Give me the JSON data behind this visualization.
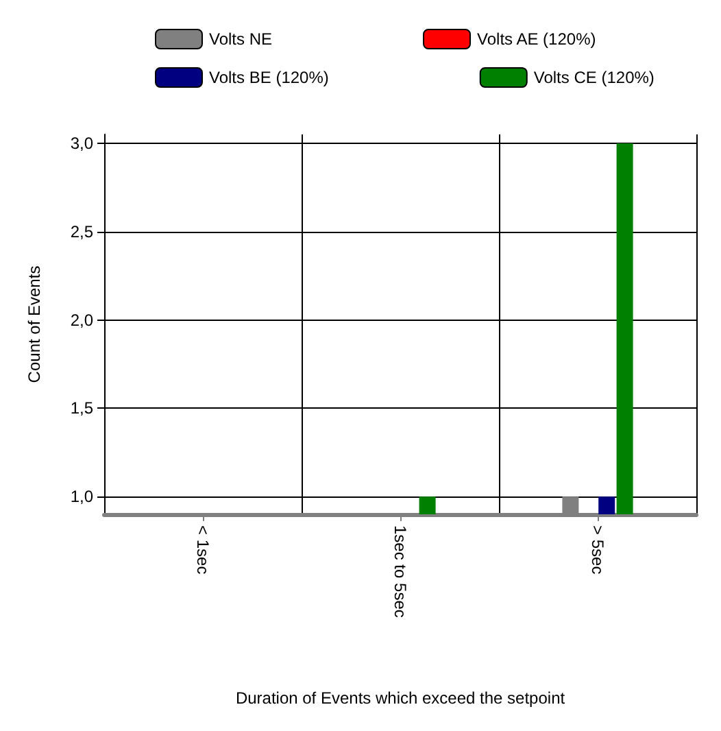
{
  "chart_data": {
    "type": "bar",
    "xlabel": "Duration of Events which exceed the setpoint",
    "ylabel": "Count of Events",
    "categories": [
      "< 1sec",
      "1sec to 5sec",
      "> 5sec"
    ],
    "series": [
      {
        "name": "Volts NE",
        "color": "#808080",
        "values": [
          null,
          null,
          1
        ]
      },
      {
        "name": "Volts AE (120%)",
        "color": "#ff0000",
        "values": [
          null,
          null,
          null
        ]
      },
      {
        "name": "Volts BE (120%)",
        "color": "#000080",
        "values": [
          null,
          null,
          1
        ]
      },
      {
        "name": "Volts CE (120%)",
        "color": "#008000",
        "values": [
          null,
          1,
          3
        ]
      }
    ],
    "ylim": [
      0.9,
      3.05
    ],
    "yticks": [
      {
        "value": 1,
        "label": "1,0"
      },
      {
        "value": 1.5,
        "label": "1,5"
      },
      {
        "value": 2,
        "label": "2,0"
      },
      {
        "value": 2.5,
        "label": "2,5"
      },
      {
        "value": 3,
        "label": "3,0"
      }
    ],
    "grid": true,
    "legend": "top"
  }
}
